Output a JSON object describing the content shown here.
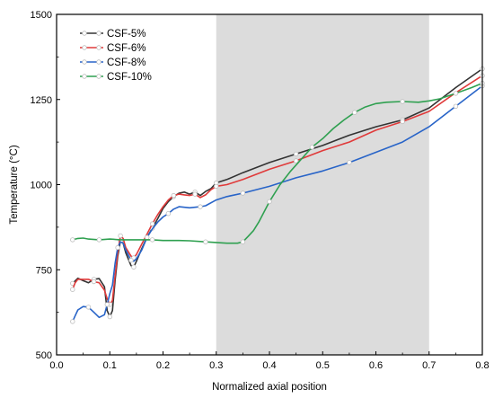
{
  "chart_data": {
    "type": "line",
    "title": "",
    "xlabel": "Normalized axial position",
    "ylabel": "Temperature (°C)",
    "xlim": [
      0.0,
      0.8
    ],
    "ylim": [
      500,
      1500
    ],
    "x_ticks": [
      "0.0",
      "0.1",
      "0.2",
      "0.3",
      "0.4",
      "0.5",
      "0.6",
      "0.7",
      "0.8"
    ],
    "y_ticks": [
      "500",
      "750",
      "1000",
      "1250",
      "1500"
    ],
    "shaded_region": {
      "x_from": 0.3,
      "x_to": 0.7,
      "color": "#dcdcdc"
    },
    "grid": false,
    "legend_position": "top-left",
    "series": [
      {
        "name": "CSF-5%",
        "color": "#333333",
        "points": [
          [
            0.03,
            710
          ],
          [
            0.04,
            725
          ],
          [
            0.05,
            718
          ],
          [
            0.06,
            712
          ],
          [
            0.07,
            722
          ],
          [
            0.08,
            724
          ],
          [
            0.09,
            700
          ],
          [
            0.095,
            630
          ],
          [
            0.1,
            612
          ],
          [
            0.105,
            630
          ],
          [
            0.11,
            720
          ],
          [
            0.115,
            790
          ],
          [
            0.12,
            835
          ],
          [
            0.125,
            828
          ],
          [
            0.13,
            800
          ],
          [
            0.14,
            762
          ],
          [
            0.145,
            758
          ],
          [
            0.15,
            775
          ],
          [
            0.16,
            812
          ],
          [
            0.17,
            845
          ],
          [
            0.18,
            872
          ],
          [
            0.19,
            900
          ],
          [
            0.2,
            930
          ],
          [
            0.21,
            950
          ],
          [
            0.22,
            965
          ],
          [
            0.23,
            975
          ],
          [
            0.24,
            978
          ],
          [
            0.25,
            972
          ],
          [
            0.26,
            978
          ],
          [
            0.27,
            968
          ],
          [
            0.28,
            980
          ],
          [
            0.29,
            988
          ],
          [
            0.3,
            1005
          ],
          [
            0.32,
            1015
          ],
          [
            0.35,
            1035
          ],
          [
            0.4,
            1065
          ],
          [
            0.45,
            1090
          ],
          [
            0.5,
            1115
          ],
          [
            0.55,
            1145
          ],
          [
            0.6,
            1170
          ],
          [
            0.65,
            1190
          ],
          [
            0.7,
            1225
          ],
          [
            0.75,
            1285
          ],
          [
            0.8,
            1340
          ]
        ]
      },
      {
        "name": "CSF-6%",
        "color": "#e03a3a",
        "points": [
          [
            0.03,
            692
          ],
          [
            0.035,
            712
          ],
          [
            0.04,
            722
          ],
          [
            0.06,
            722
          ],
          [
            0.07,
            715
          ],
          [
            0.08,
            712
          ],
          [
            0.09,
            690
          ],
          [
            0.095,
            665
          ],
          [
            0.1,
            648
          ],
          [
            0.105,
            660
          ],
          [
            0.11,
            735
          ],
          [
            0.115,
            800
          ],
          [
            0.12,
            850
          ],
          [
            0.125,
            842
          ],
          [
            0.13,
            815
          ],
          [
            0.14,
            790
          ],
          [
            0.145,
            785
          ],
          [
            0.15,
            795
          ],
          [
            0.16,
            825
          ],
          [
            0.17,
            855
          ],
          [
            0.18,
            885
          ],
          [
            0.19,
            912
          ],
          [
            0.2,
            935
          ],
          [
            0.21,
            955
          ],
          [
            0.22,
            968
          ],
          [
            0.23,
            972
          ],
          [
            0.24,
            970
          ],
          [
            0.25,
            968
          ],
          [
            0.26,
            972
          ],
          [
            0.27,
            962
          ],
          [
            0.28,
            970
          ],
          [
            0.29,
            985
          ],
          [
            0.3,
            995
          ],
          [
            0.32,
            1000
          ],
          [
            0.35,
            1015
          ],
          [
            0.4,
            1045
          ],
          [
            0.45,
            1070
          ],
          [
            0.5,
            1100
          ],
          [
            0.55,
            1125
          ],
          [
            0.6,
            1160
          ],
          [
            0.65,
            1185
          ],
          [
            0.7,
            1215
          ],
          [
            0.75,
            1270
          ],
          [
            0.8,
            1320
          ]
        ]
      },
      {
        "name": "CSF-8%",
        "color": "#2864c8",
        "points": [
          [
            0.03,
            598
          ],
          [
            0.035,
            615
          ],
          [
            0.04,
            632
          ],
          [
            0.05,
            642
          ],
          [
            0.06,
            640
          ],
          [
            0.07,
            625
          ],
          [
            0.08,
            610
          ],
          [
            0.09,
            618
          ],
          [
            0.095,
            648
          ],
          [
            0.1,
            680
          ],
          [
            0.105,
            705
          ],
          [
            0.11,
            770
          ],
          [
            0.115,
            815
          ],
          [
            0.12,
            832
          ],
          [
            0.125,
            828
          ],
          [
            0.13,
            808
          ],
          [
            0.14,
            778
          ],
          [
            0.145,
            775
          ],
          [
            0.15,
            782
          ],
          [
            0.16,
            808
          ],
          [
            0.17,
            845
          ],
          [
            0.18,
            870
          ],
          [
            0.19,
            890
          ],
          [
            0.2,
            905
          ],
          [
            0.21,
            915
          ],
          [
            0.22,
            928
          ],
          [
            0.23,
            935
          ],
          [
            0.25,
            932
          ],
          [
            0.27,
            935
          ],
          [
            0.28,
            938
          ],
          [
            0.3,
            955
          ],
          [
            0.32,
            965
          ],
          [
            0.35,
            975
          ],
          [
            0.4,
            995
          ],
          [
            0.45,
            1020
          ],
          [
            0.5,
            1040
          ],
          [
            0.55,
            1065
          ],
          [
            0.6,
            1095
          ],
          [
            0.65,
            1125
          ],
          [
            0.7,
            1170
          ],
          [
            0.75,
            1230
          ],
          [
            0.8,
            1290
          ]
        ]
      },
      {
        "name": "CSF-10%",
        "color": "#2fa050",
        "points": [
          [
            0.03,
            838
          ],
          [
            0.04,
            842
          ],
          [
            0.05,
            843
          ],
          [
            0.06,
            840
          ],
          [
            0.08,
            838
          ],
          [
            0.1,
            840
          ],
          [
            0.12,
            838
          ],
          [
            0.15,
            838
          ],
          [
            0.18,
            838
          ],
          [
            0.2,
            836
          ],
          [
            0.23,
            836
          ],
          [
            0.25,
            835
          ],
          [
            0.28,
            832
          ],
          [
            0.3,
            830
          ],
          [
            0.32,
            828
          ],
          [
            0.34,
            828
          ],
          [
            0.35,
            832
          ],
          [
            0.36,
            848
          ],
          [
            0.37,
            865
          ],
          [
            0.38,
            890
          ],
          [
            0.4,
            950
          ],
          [
            0.42,
            1000
          ],
          [
            0.44,
            1040
          ],
          [
            0.46,
            1075
          ],
          [
            0.48,
            1110
          ],
          [
            0.5,
            1135
          ],
          [
            0.52,
            1165
          ],
          [
            0.54,
            1190
          ],
          [
            0.56,
            1212
          ],
          [
            0.58,
            1228
          ],
          [
            0.6,
            1238
          ],
          [
            0.62,
            1242
          ],
          [
            0.65,
            1244
          ],
          [
            0.68,
            1242
          ],
          [
            0.7,
            1246
          ],
          [
            0.72,
            1252
          ],
          [
            0.75,
            1268
          ],
          [
            0.78,
            1285
          ],
          [
            0.8,
            1298
          ]
        ]
      }
    ]
  }
}
